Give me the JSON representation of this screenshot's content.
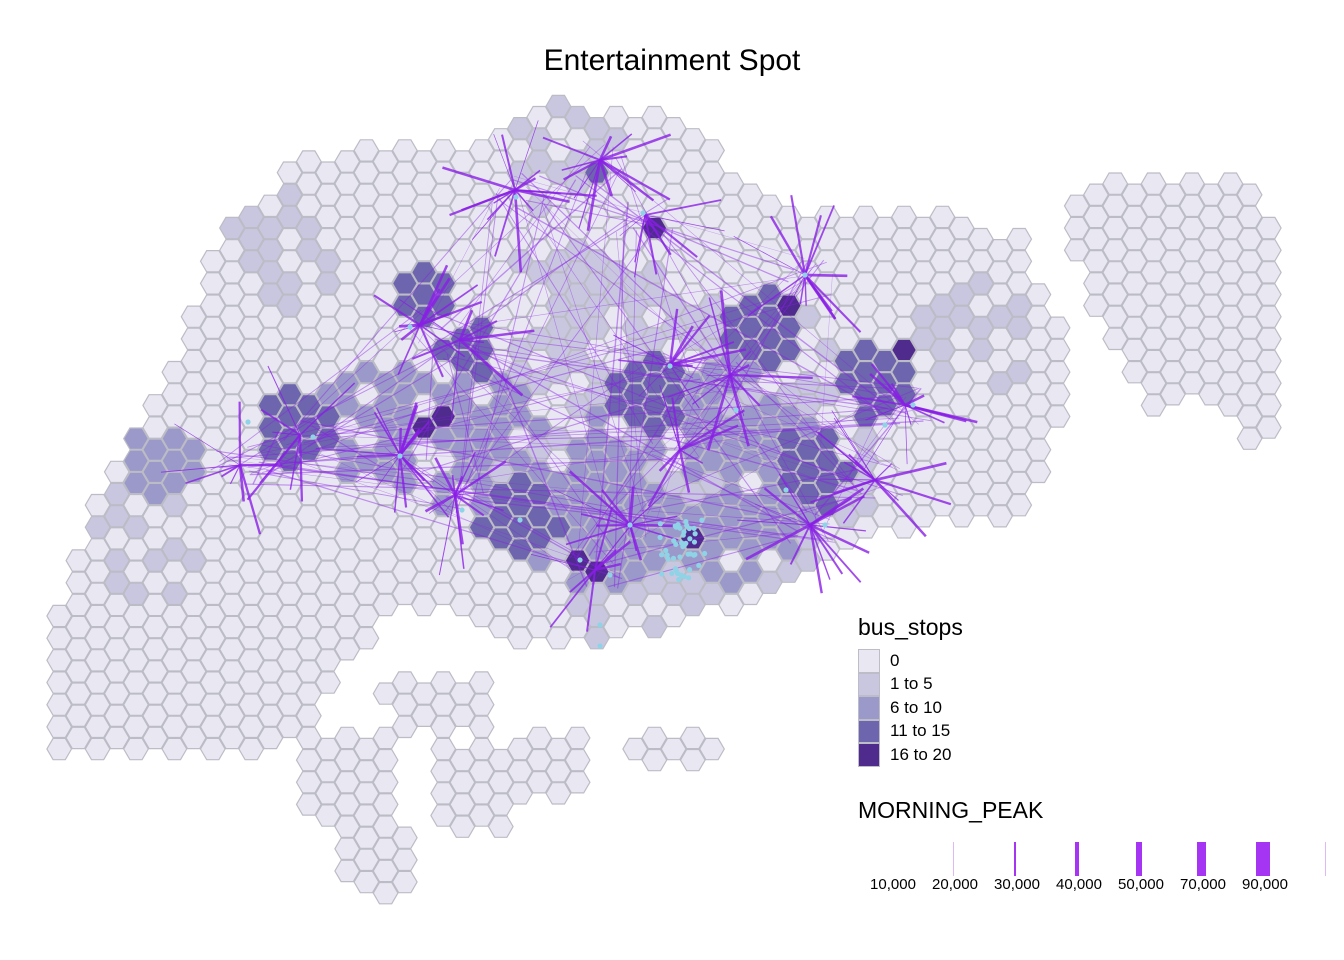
{
  "map": {
    "title": "Entertainment Spot",
    "hex_colors": [
      "#e9e8f2",
      "#c9c7e0",
      "#9b99c9",
      "#6d65ad",
      "#4f2b8e"
    ],
    "flow_color": "#8a1ee6",
    "point_color": "#8fd3e6"
  },
  "legend_fill": {
    "title": "bus_stops",
    "classes": [
      {
        "label": "0",
        "color": "#e9e8f2"
      },
      {
        "label": "1 to 5",
        "color": "#c9c7e0"
      },
      {
        "label": "6 to 10",
        "color": "#9b99c9"
      },
      {
        "label": "11 to 15",
        "color": "#6d65ad"
      },
      {
        "label": "16 to 20",
        "color": "#4f2b8e"
      }
    ]
  },
  "legend_lines": {
    "title": "MORNING_PEAK",
    "entries": [
      {
        "label": "10,000",
        "weight": 1
      },
      {
        "label": "20,000",
        "weight": 2
      },
      {
        "label": "30,000",
        "weight": 4
      },
      {
        "label": "40,000",
        "weight": 6
      },
      {
        "label": "50,000",
        "weight": 9
      },
      {
        "label": "70,000",
        "weight": 14
      },
      {
        "label": "90,000",
        "weight": 1
      }
    ]
  }
}
